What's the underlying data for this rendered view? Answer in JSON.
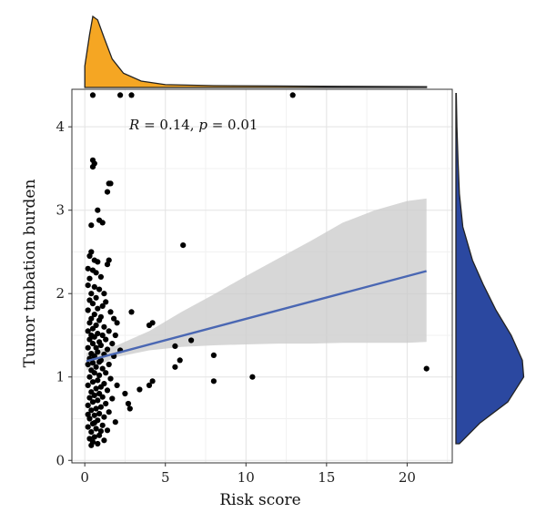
{
  "chart_data": {
    "type": "scatter",
    "title": "",
    "xlabel": "Risk score",
    "ylabel": "Tumor tmbation burden",
    "xlim": [
      -0.8,
      22.8
    ],
    "ylim": [
      -0.03,
      4.45
    ],
    "xticks": [
      "0",
      "5",
      "10",
      "15",
      "20"
    ],
    "yticks": [
      "0",
      "1",
      "2",
      "3",
      "4"
    ],
    "grid": true,
    "annotation": {
      "R_label": "R",
      "R_text": " = 0.14, ",
      "p_label": "p",
      "p_text": " = 0.01"
    },
    "regression": {
      "x": [
        0.1,
        21.2
      ],
      "y": [
        1.19,
        2.27
      ],
      "color": "#4a67b3"
    },
    "confidence_band": {
      "x": [
        0.1,
        2,
        4,
        6,
        8,
        10,
        12,
        14,
        16,
        18,
        20,
        21.2
      ],
      "lower": [
        1.08,
        1.24,
        1.32,
        1.36,
        1.38,
        1.39,
        1.4,
        1.4,
        1.41,
        1.41,
        1.41,
        1.42
      ],
      "upper": [
        1.29,
        1.38,
        1.55,
        1.78,
        1.99,
        2.21,
        2.42,
        2.63,
        2.85,
        3.0,
        3.11,
        3.14
      ]
    },
    "marginal_x": {
      "color": "#f5a623",
      "kde_x": [
        0,
        0.3,
        0.5,
        0.8,
        1.2,
        1.7,
        2.4,
        3.5,
        5,
        8,
        12,
        16,
        21.2
      ],
      "kde_y": [
        0.3,
        0.75,
        1.0,
        0.95,
        0.7,
        0.4,
        0.2,
        0.09,
        0.04,
        0.025,
        0.02,
        0.015,
        0.01
      ]
    },
    "marginal_y": {
      "color": "#2b48a0",
      "kde_y": [
        0.2,
        0.45,
        0.7,
        1.0,
        1.2,
        1.5,
        1.8,
        2.1,
        2.4,
        2.8,
        3.2,
        3.6,
        4.0,
        4.4
      ],
      "kde_x": [
        0.05,
        0.35,
        0.75,
        0.98,
        0.96,
        0.8,
        0.58,
        0.4,
        0.24,
        0.1,
        0.05,
        0.03,
        0.015,
        0.005
      ]
    },
    "points": [
      [
        0.5,
        4.38
      ],
      [
        2.2,
        4.38
      ],
      [
        2.9,
        4.38
      ],
      [
        12.9,
        4.38
      ],
      [
        0.5,
        3.52
      ],
      [
        0.6,
        3.56
      ],
      [
        0.5,
        3.6
      ],
      [
        1.5,
        3.32
      ],
      [
        1.6,
        3.32
      ],
      [
        1.4,
        3.22
      ],
      [
        0.8,
        3.0
      ],
      [
        0.9,
        2.88
      ],
      [
        1.1,
        2.85
      ],
      [
        0.4,
        2.82
      ],
      [
        6.1,
        2.58
      ],
      [
        0.4,
        2.5
      ],
      [
        0.3,
        2.45
      ],
      [
        0.6,
        2.4
      ],
      [
        0.8,
        2.38
      ],
      [
        1.5,
        2.4
      ],
      [
        1.4,
        2.35
      ],
      [
        0.2,
        2.3
      ],
      [
        0.5,
        2.28
      ],
      [
        0.7,
        2.25
      ],
      [
        1.0,
        2.2
      ],
      [
        0.3,
        2.18
      ],
      [
        0.2,
        2.1
      ],
      [
        0.6,
        2.08
      ],
      [
        0.9,
        2.05
      ],
      [
        0.4,
        2.0
      ],
      [
        1.2,
        2.0
      ],
      [
        0.7,
        1.95
      ],
      [
        0.3,
        1.92
      ],
      [
        1.3,
        1.9
      ],
      [
        0.5,
        1.88
      ],
      [
        1.1,
        1.85
      ],
      [
        0.8,
        1.82
      ],
      [
        0.2,
        1.8
      ],
      [
        1.6,
        1.78
      ],
      [
        2.9,
        1.78
      ],
      [
        0.6,
        1.75
      ],
      [
        1.0,
        1.72
      ],
      [
        0.4,
        1.7
      ],
      [
        1.8,
        1.7
      ],
      [
        0.9,
        1.68
      ],
      [
        0.3,
        1.65
      ],
      [
        2.0,
        1.65
      ],
      [
        4.0,
        1.62
      ],
      [
        4.2,
        1.65
      ],
      [
        0.7,
        1.62
      ],
      [
        1.2,
        1.6
      ],
      [
        0.5,
        1.58
      ],
      [
        1.5,
        1.55
      ],
      [
        0.2,
        1.55
      ],
      [
        0.8,
        1.52
      ],
      [
        1.1,
        1.5
      ],
      [
        0.4,
        1.5
      ],
      [
        1.9,
        1.5
      ],
      [
        0.6,
        1.48
      ],
      [
        1.3,
        1.45
      ],
      [
        0.3,
        1.45
      ],
      [
        0.9,
        1.42
      ],
      [
        6.6,
        1.44
      ],
      [
        5.6,
        1.37
      ],
      [
        0.5,
        1.4
      ],
      [
        1.7,
        1.4
      ],
      [
        1.0,
        1.38
      ],
      [
        0.7,
        1.35
      ],
      [
        0.2,
        1.35
      ],
      [
        1.4,
        1.33
      ],
      [
        2.2,
        1.32
      ],
      [
        0.8,
        1.3
      ],
      [
        0.4,
        1.28
      ],
      [
        1.2,
        1.27
      ],
      [
        0.6,
        1.25
      ],
      [
        1.8,
        1.25
      ],
      [
        8.0,
        1.26
      ],
      [
        0.3,
        1.22
      ],
      [
        1.0,
        1.2
      ],
      [
        5.9,
        1.2
      ],
      [
        0.9,
        1.18
      ],
      [
        0.5,
        1.17
      ],
      [
        1.5,
        1.15
      ],
      [
        0.2,
        1.15
      ],
      [
        5.6,
        1.12
      ],
      [
        0.7,
        1.12
      ],
      [
        1.1,
        1.1
      ],
      [
        0.4,
        1.08
      ],
      [
        21.2,
        1.1
      ],
      [
        1.3,
        1.05
      ],
      [
        0.6,
        1.05
      ],
      [
        0.9,
        1.02
      ],
      [
        10.4,
        1.0
      ],
      [
        0.3,
        1.0
      ],
      [
        1.6,
        0.98
      ],
      [
        0.8,
        0.96
      ],
      [
        8.0,
        0.95
      ],
      [
        4.2,
        0.95
      ],
      [
        0.5,
        0.94
      ],
      [
        1.2,
        0.92
      ],
      [
        2.0,
        0.9
      ],
      [
        4.0,
        0.9
      ],
      [
        0.2,
        0.9
      ],
      [
        1.0,
        0.88
      ],
      [
        3.4,
        0.85
      ],
      [
        0.7,
        0.86
      ],
      [
        1.4,
        0.84
      ],
      [
        0.4,
        0.82
      ],
      [
        0.9,
        0.8
      ],
      [
        2.5,
        0.8
      ],
      [
        0.6,
        0.78
      ],
      [
        1.1,
        0.76
      ],
      [
        0.3,
        0.75
      ],
      [
        1.7,
        0.74
      ],
      [
        0.8,
        0.72
      ],
      [
        0.5,
        0.7
      ],
      [
        1.3,
        0.68
      ],
      [
        2.7,
        0.68
      ],
      [
        0.2,
        0.66
      ],
      [
        1.0,
        0.64
      ],
      [
        2.8,
        0.62
      ],
      [
        0.7,
        0.62
      ],
      [
        0.4,
        0.6
      ],
      [
        1.5,
        0.58
      ],
      [
        0.9,
        0.56
      ],
      [
        0.6,
        0.54
      ],
      [
        1.2,
        0.52
      ],
      [
        0.3,
        0.5
      ],
      [
        0.8,
        0.48
      ],
      [
        1.9,
        0.46
      ],
      [
        0.5,
        0.44
      ],
      [
        1.1,
        0.42
      ],
      [
        0.2,
        0.4
      ],
      [
        0.7,
        0.38
      ],
      [
        1.4,
        0.36
      ],
      [
        0.4,
        0.34
      ],
      [
        0.9,
        0.3
      ],
      [
        0.6,
        0.28
      ],
      [
        0.3,
        0.26
      ],
      [
        1.2,
        0.24
      ],
      [
        0.5,
        0.22
      ],
      [
        0.8,
        0.2
      ],
      [
        0.4,
        0.18
      ],
      [
        1.0,
        0.35
      ],
      [
        0.6,
        0.45
      ],
      [
        0.2,
        0.55
      ]
    ]
  }
}
